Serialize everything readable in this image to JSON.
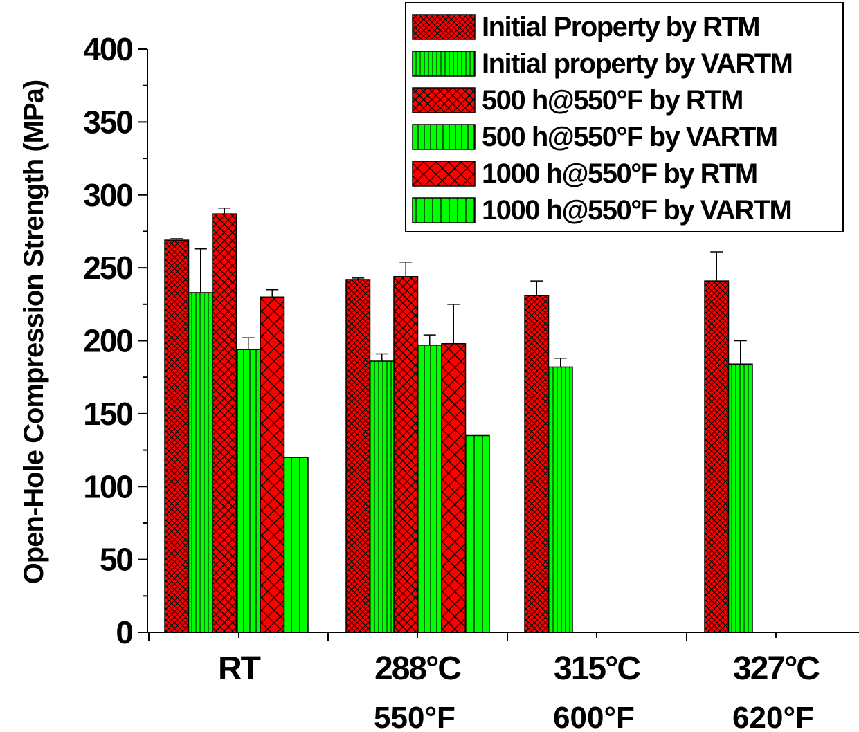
{
  "chart_data": {
    "type": "bar",
    "ylabel": "Open-Hole Compression Strength (MPa)",
    "ylim": [
      0,
      400
    ],
    "yticks": [
      0,
      50,
      100,
      150,
      200,
      250,
      300,
      350,
      400
    ],
    "categories": [
      "RT",
      "288°C",
      "315°C",
      "327°C"
    ],
    "category_sublabels": [
      "",
      "550°F",
      "600°F",
      "620°F"
    ],
    "legend_position": "top-right",
    "series": [
      {
        "name": "Initial Property by RTM",
        "color": "#ff0000",
        "pattern": "dense-crosshatch",
        "values": [
          269,
          242,
          231,
          241
        ],
        "errors": [
          1,
          1,
          10,
          20
        ]
      },
      {
        "name": "Initial property by VARTM",
        "color": "#00ff00",
        "pattern": "dense-vertical",
        "values": [
          233,
          186,
          182,
          184
        ],
        "errors": [
          30,
          5,
          6,
          16
        ]
      },
      {
        "name": "500 h@550°F by RTM",
        "color": "#ff0000",
        "pattern": "crosshatch",
        "values": [
          287,
          244,
          null,
          null
        ],
        "errors": [
          4,
          10,
          null,
          null
        ]
      },
      {
        "name": "500 h@550°F by VARTM",
        "color": "#00ff00",
        "pattern": "vertical",
        "values": [
          194,
          197,
          null,
          null
        ],
        "errors": [
          8,
          7,
          null,
          null
        ]
      },
      {
        "name": "1000 h@550°F by RTM",
        "color": "#ff0000",
        "pattern": "sparse-crosshatch",
        "values": [
          230,
          198,
          null,
          null
        ],
        "errors": [
          5,
          27,
          null,
          null
        ]
      },
      {
        "name": "1000 h@550°F by VARTM",
        "color": "#00ff00",
        "pattern": "sparse-vertical",
        "values": [
          120,
          135,
          null,
          null
        ],
        "errors": [
          0,
          0,
          null,
          null
        ]
      }
    ]
  }
}
